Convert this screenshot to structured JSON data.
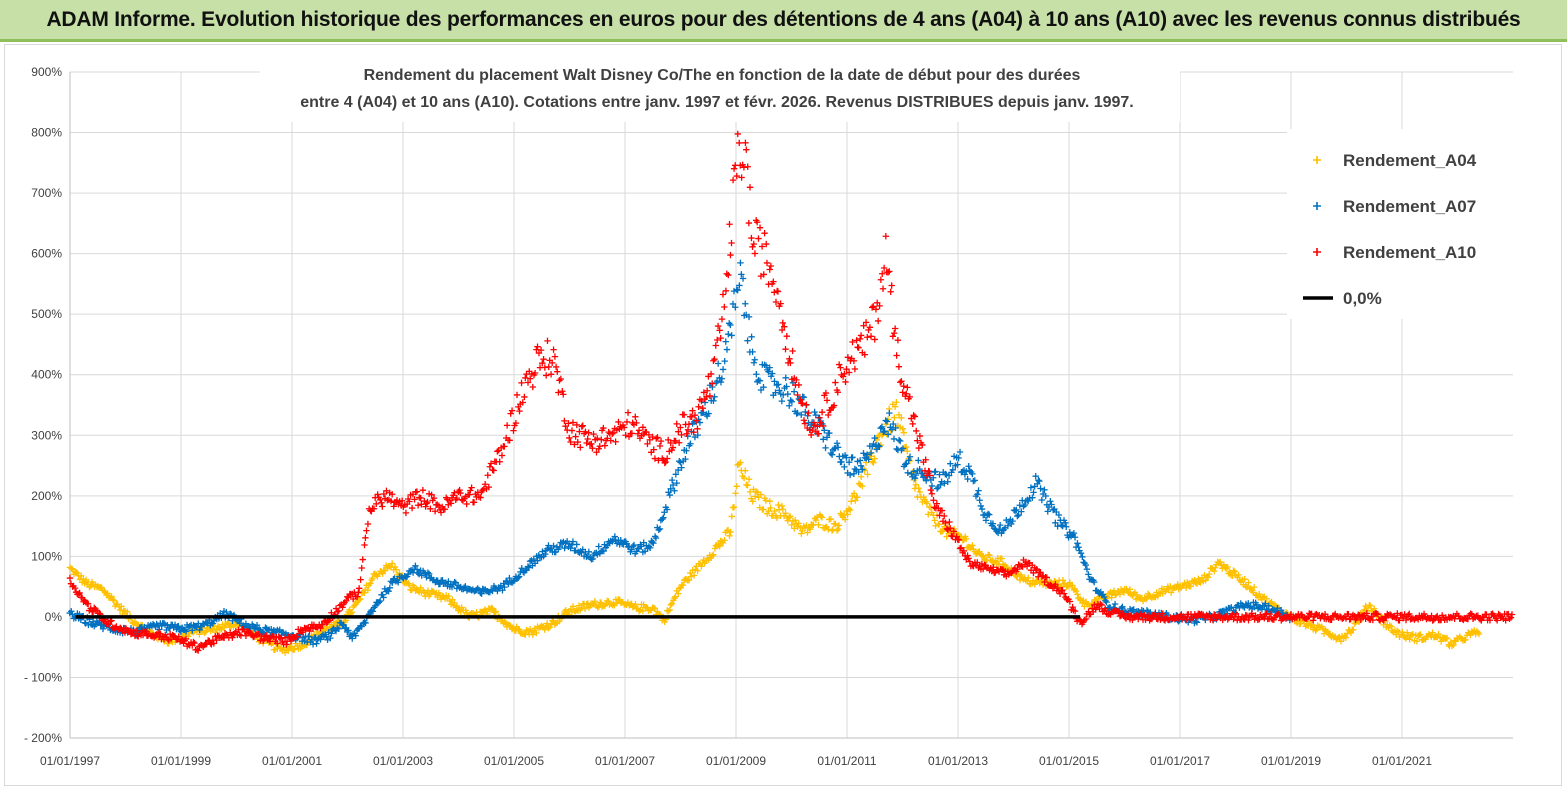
{
  "header": {
    "title": "ADAM Informe. Evolution historique des performances en euros pour des détentions de 4 ans (A04) à 10 ans (A10) avec les revenus connus distribués"
  },
  "colors": {
    "A04": "#ffc000",
    "A07": "#0070c0",
    "A10": "#ff0000",
    "zero": "#000000",
    "banner": "#c6e0a8",
    "grid": "#d9d9d9"
  },
  "chart_data": {
    "type": "scatter",
    "title_lines": [
      "Rendement du placement Walt Disney Co/The en fonction de la date de début pour des durées",
      "entre 4 (A04) et 10 ans (A10).  Cotations entre janv. 1997 et févr. 2026. Revenus DISTRIBUES depuis janv. 1997."
    ],
    "x_range": [
      1997.0,
      2023.0
    ],
    "ylim": [
      -200,
      900
    ],
    "y_ticks": [
      -200,
      -100,
      0,
      100,
      200,
      300,
      400,
      500,
      600,
      700,
      800,
      900
    ],
    "y_tick_labels": [
      "- 200%",
      "- 100%",
      "0%",
      "100%",
      "200%",
      "300%",
      "400%",
      "500%",
      "600%",
      "700%",
      "800%",
      "900%"
    ],
    "x_ticks": [
      1997,
      1999,
      2001,
      2003,
      2005,
      2007,
      2009,
      2011,
      2013,
      2015,
      2017,
      2019,
      2021
    ],
    "x_tick_labels": [
      "01/01/1997",
      "01/01/1999",
      "01/01/2001",
      "01/01/2003",
      "01/01/2005",
      "01/01/2007",
      "01/01/2009",
      "01/01/2011",
      "01/01/2013",
      "01/01/2015",
      "01/01/2017",
      "01/01/2019",
      "01/01/2021"
    ],
    "legend_position": "top-right",
    "series": [
      {
        "name": "Rendement_A04",
        "x": [
          1997.0,
          1997.3,
          1997.6,
          1998.0,
          1998.4,
          1998.8,
          1999.2,
          1999.6,
          2000.0,
          2000.4,
          2000.8,
          2001.2,
          2001.6,
          2001.9,
          2002.2,
          2002.5,
          2002.8,
          2003.1,
          2003.4,
          2003.8,
          2004.2,
          2004.6,
          2005.0,
          2005.3,
          2005.7,
          2006.0,
          2006.4,
          2006.8,
          2007.2,
          2007.5,
          2007.7,
          2008.0,
          2008.3,
          2008.6,
          2008.9,
          2009.05,
          2009.3,
          2009.6,
          2009.9,
          2010.2,
          2010.5,
          2010.8,
          2011.1,
          2011.4,
          2011.6,
          2011.9,
          2012.2,
          2012.5,
          2012.8,
          2013.1,
          2013.4,
          2013.8,
          2014.2,
          2014.6,
          2015.0,
          2015.3,
          2015.6,
          2016.0,
          2016.3,
          2016.6,
          2017.0,
          2017.4,
          2017.7,
          2017.9,
          2018.2,
          2018.5,
          2018.8,
          2019.1,
          2019.5,
          2019.9,
          2020.1,
          2020.4,
          2020.8,
          2021.0,
          2021.3,
          2021.6,
          2021.9,
          2022.2,
          2022.4
        ],
        "y": [
          80,
          55,
          45,
          5,
          -25,
          -40,
          -25,
          -20,
          -10,
          -35,
          -55,
          -45,
          -20,
          -10,
          25,
          70,
          85,
          50,
          40,
          30,
          0,
          10,
          -20,
          -25,
          -10,
          10,
          20,
          25,
          15,
          15,
          -5,
          50,
          80,
          110,
          140,
          250,
          200,
          180,
          170,
          140,
          160,
          150,
          190,
          250,
          300,
          340,
          220,
          170,
          140,
          130,
          100,
          90,
          60,
          55,
          55,
          20,
          30,
          45,
          30,
          40,
          50,
          60,
          90,
          75,
          55,
          30,
          10,
          -5,
          -20,
          -35,
          -20,
          20,
          -20,
          -30,
          -35,
          -30,
          -45,
          -30,
          -25
        ]
      },
      {
        "name": "Rendement_A07",
        "x": [
          1997.0,
          1997.4,
          1997.8,
          1998.2,
          1998.6,
          1999.0,
          1999.4,
          1999.8,
          2000.2,
          2000.6,
          2001.0,
          2001.4,
          2001.7,
          2001.9,
          2002.1,
          2002.3,
          2002.5,
          2002.8,
          2003.2,
          2003.6,
          2004.0,
          2004.4,
          2004.8,
          2005.2,
          2005.6,
          2006.0,
          2006.4,
          2006.8,
          2007.2,
          2007.5,
          2007.8,
          2008.1,
          2008.4,
          2008.6,
          2008.8,
          2008.95,
          2009.1,
          2009.25,
          2009.5,
          2009.8,
          2010.0,
          2010.3,
          2010.6,
          2010.9,
          2011.2,
          2011.5,
          2011.7,
          2011.9,
          2012.1,
          2012.4,
          2012.7,
          2013.0,
          2013.2,
          2013.5,
          2013.8,
          2014.1,
          2014.4,
          2014.8,
          2015.1,
          2015.4,
          2015.7,
          2016.0,
          2016.4,
          2016.8,
          2017.2,
          2017.6,
          2017.9,
          2018.2,
          2018.6,
          2019.0
        ],
        "y": [
          5,
          -10,
          -20,
          -25,
          -15,
          -20,
          -15,
          5,
          -15,
          -25,
          -30,
          -40,
          -30,
          -10,
          -35,
          -10,
          20,
          55,
          80,
          60,
          50,
          40,
          50,
          80,
          110,
          120,
          100,
          130,
          110,
          120,
          200,
          280,
          330,
          380,
          420,
          500,
          560,
          450,
          390,
          380,
          370,
          330,
          300,
          260,
          240,
          280,
          330,
          290,
          250,
          240,
          220,
          260,
          240,
          170,
          140,
          180,
          220,
          160,
          130,
          60,
          20,
          10,
          5,
          0,
          -5,
          0,
          10,
          20,
          15,
          0
        ]
      },
      {
        "name": "Rendement_A10",
        "x": [
          1997.0,
          1997.3,
          1997.7,
          1998.1,
          1998.5,
          1998.9,
          1999.3,
          1999.7,
          2000.1,
          2000.5,
          2000.9,
          2001.2,
          2001.5,
          2001.8,
          2002.0,
          2002.2,
          2002.4,
          2002.7,
          2003.0,
          2003.3,
          2003.7,
          2004.0,
          2004.4,
          2004.8,
          2005.1,
          2005.4,
          2005.7,
          2006.0,
          2006.4,
          2006.8,
          2007.1,
          2007.4,
          2007.7,
          2008.0,
          2008.3,
          2008.6,
          2008.8,
          2009.0,
          2009.15,
          2009.3,
          2009.5,
          2009.75,
          2010.0,
          2010.2,
          2010.4,
          2010.7,
          2011.0,
          2011.3,
          2011.5,
          2011.7,
          2011.9,
          2012.1,
          2012.3,
          2012.6,
          2012.9,
          2013.2,
          2013.5,
          2013.9,
          2014.2,
          2014.6,
          2014.9,
          2015.2,
          2015.5,
          2015.8,
          2016.1,
          2016.5,
          2017.0,
          2017.5,
          2018.0,
          2018.5,
          2019.0,
          2019.5,
          2020.0,
          2020.5,
          2021.0,
          2021.5,
          2022.0,
          2022.5,
          2023.0
        ],
        "y": [
          60,
          20,
          -10,
          -25,
          -30,
          -35,
          -50,
          -35,
          -25,
          -35,
          -40,
          -20,
          -15,
          10,
          30,
          40,
          180,
          200,
          180,
          200,
          180,
          200,
          200,
          280,
          360,
          420,
          430,
          310,
          290,
          300,
          320,
          290,
          270,
          310,
          330,
          400,
          520,
          740,
          780,
          620,
          600,
          540,
          420,
          350,
          310,
          360,
          420,
          450,
          490,
          600,
          440,
          360,
          290,
          180,
          140,
          90,
          80,
          70,
          90,
          60,
          40,
          -10,
          20,
          5,
          0,
          0,
          0,
          0,
          0,
          0,
          0,
          0,
          0,
          0,
          0,
          0,
          0,
          0,
          0
        ]
      }
    ],
    "reference_line": {
      "name": "0,0%",
      "y": 0
    }
  }
}
